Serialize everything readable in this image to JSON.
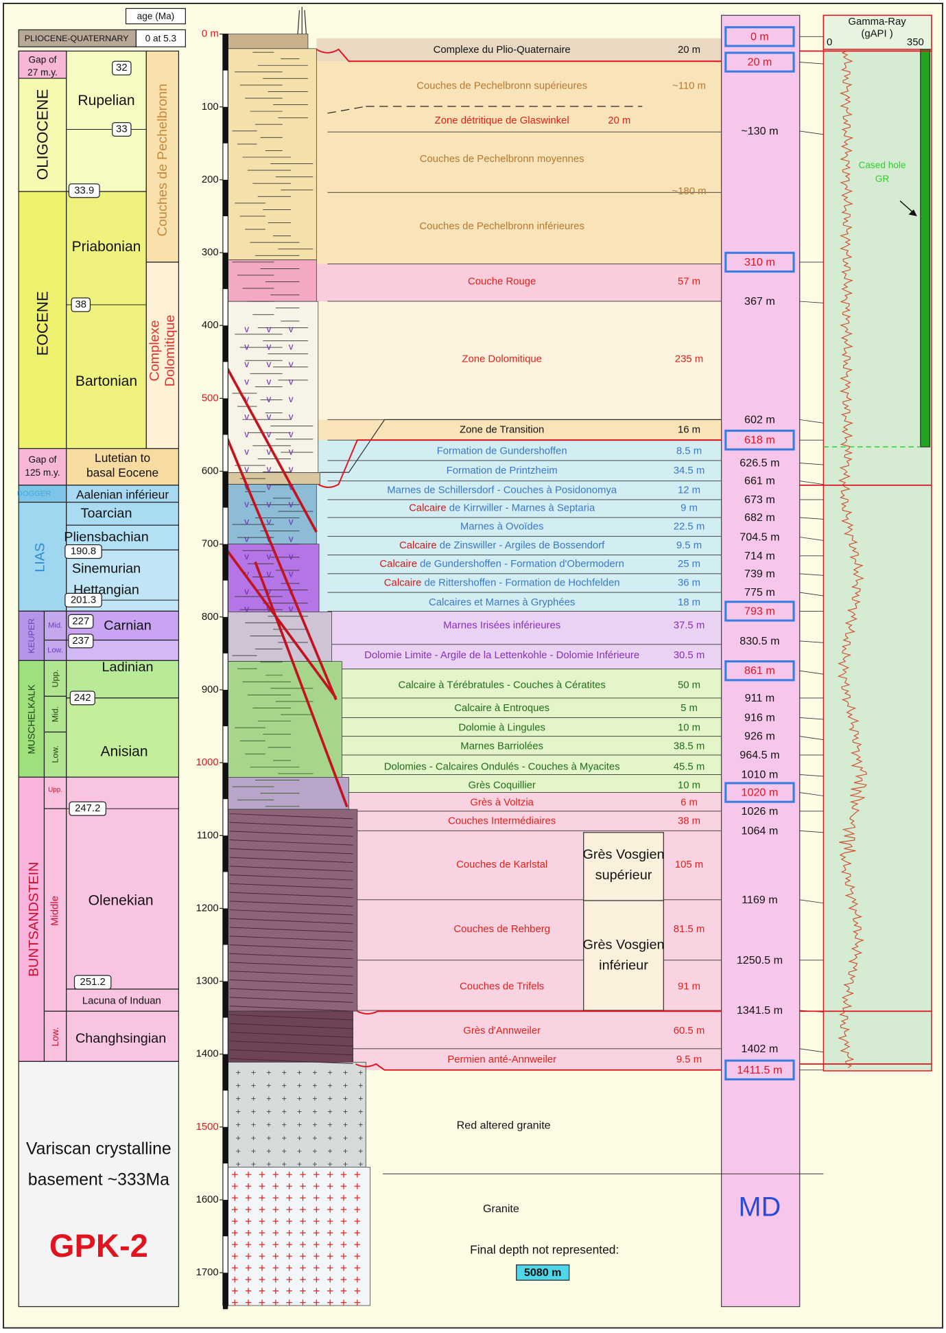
{
  "chronostratigraphy": {
    "age_header": "age (Ma)",
    "top_label": "PLIOCENE-QUATERNARY",
    "top_age": "0 at 5.3",
    "gaps": [
      [
        "Gap of",
        "27 m.y."
      ],
      [
        "Gap of",
        "125 m.y."
      ]
    ],
    "series": [
      "OLIGOCENE",
      "EOCENE",
      "DOGGER",
      "LIAS",
      "KEUPER",
      "MUSCHELKALK",
      "BUNTSANDSTEIN"
    ],
    "subdivisions": [
      "Mid.",
      "Low.",
      "Upp.",
      "Mid.",
      "Low.",
      "Upp.",
      "Middle",
      "Low."
    ],
    "stages": [
      "Rupelian",
      "Priabonian",
      "Bartonian",
      "Lutetian to",
      "basal Eocene",
      "Aalenian inférieur",
      "Toarcian",
      "Pliensbachian",
      "Sinemurian",
      "Hettangian",
      "Carnian",
      "Ladinian",
      "Anisian",
      "Olenekian",
      "Lacuna of Induan",
      "Changhsingian"
    ],
    "ages": [
      32,
      33,
      33.9,
      38,
      190.8,
      201.3,
      227,
      237,
      242,
      247.2,
      251.2
    ],
    "groups": [
      [
        "Couches de Pechelbronn"
      ],
      [
        "Complexe",
        "Dolomitique"
      ]
    ],
    "basement": [
      "Variscan crystalline",
      "basement ~333Ma"
    ],
    "well": "GPK-2"
  },
  "depth_ticks": [
    {
      "value": 0,
      "label": "0 m"
    },
    100,
    200,
    300,
    400,
    500,
    600,
    700,
    800,
    900,
    1000,
    1100,
    1200,
    1300,
    1400,
    1500,
    1600,
    1700
  ],
  "formations": [
    {
      "name": "Complexe du Plio-Quaternaire",
      "thickness": "20 m"
    },
    {
      "name": "Couches de Pechelbronn supérieures",
      "thickness": "~110 m"
    },
    {
      "name": "Zone détritique de Glaswinkel",
      "thickness": "20 m"
    },
    {
      "name": "Couches de Pechelbronn moyennes"
    },
    {
      "name": "Couches de Pechelbronn inférieures",
      "thickness": "~180 m"
    },
    {
      "name": "Couche Rouge",
      "thickness": "57 m"
    },
    {
      "name": "Zone Dolomitique",
      "thickness": "235 m"
    },
    {
      "name": "Zone de Transition",
      "thickness": "16 m"
    },
    {
      "name": "Formation de Gundershoffen",
      "thickness": "8.5 m"
    },
    {
      "name": "Formation de Printzheim",
      "thickness": "34.5 m"
    },
    {
      "name": "Marnes de Schillersdorf - Couches à Posidonomya",
      "thickness": "12 m"
    },
    {
      "highlight": "Calcaire",
      "name": "de Kirrwiller - Marnes à Septaria",
      "thickness": "9 m"
    },
    {
      "name": "Marnes à Ovoïdes",
      "thickness": "22.5 m"
    },
    {
      "highlight": "Calcaire",
      "name": "de Zinswiller - Argiles de Bossendorf",
      "thickness": "9.5 m"
    },
    {
      "highlight": "Calcaire",
      "name": "de Gundershoffen - Formation d'Obermodern",
      "thickness": "25 m"
    },
    {
      "highlight": "Calcaire",
      "name": "de Rittershoffen - Formation de Hochfelden",
      "thickness": "36 m"
    },
    {
      "name": "Calcaires et Marnes à Gryphées",
      "thickness": "18 m"
    },
    {
      "name": "Marnes Irisées inférieures",
      "thickness": "37.5 m"
    },
    {
      "name": "Dolomie Limite - Argile de la Lettenkohle - Dolomie Inférieure",
      "thickness": "30.5 m"
    },
    {
      "name": "Calcaire à Térébratules - Couches à Cératites",
      "thickness": "50 m"
    },
    {
      "name": "Calcaire à Entroques",
      "thickness": "5 m"
    },
    {
      "name": "Dolomie à Lingules",
      "thickness": "10 m"
    },
    {
      "name": "Marnes Barriolées",
      "thickness": "38.5 m"
    },
    {
      "name": "Dolomies - Calcaires Ondulés - Couches à Myacites",
      "thickness": "45.5 m"
    },
    {
      "name": "Grès Coquillier",
      "thickness": "10 m"
    },
    {
      "name": "Grès à Voltzia",
      "thickness": "6 m"
    },
    {
      "name": "Couches Intermédiaires",
      "thickness": "38 m"
    },
    {
      "name": "Couches de Karlstal",
      "thickness": "105 m"
    },
    {
      "name": "Couches de Rehberg",
      "thickness": "81.5 m"
    },
    {
      "name": "Couches de Trifels",
      "thickness": "91 m"
    },
    {
      "name": "Grès d'Annweiler",
      "thickness": "60.5 m"
    },
    {
      "name": "Permien anté-Annweiler",
      "thickness": "9.5 m"
    }
  ],
  "vosgien": [
    [
      "Grès Vosgien",
      "supérieur"
    ],
    [
      "Grès Vosgien",
      "inférieur"
    ]
  ],
  "md": {
    "title": "MD",
    "tops": [
      {
        "label": "0 m",
        "boxed": true
      },
      {
        "label": "20 m",
        "boxed": true
      },
      {
        "label": "~130 m"
      },
      {
        "label": "310 m",
        "boxed": true
      },
      {
        "label": "367 m"
      },
      {
        "label": "602 m"
      },
      {
        "label": "618 m",
        "boxed": true
      },
      {
        "label": "626.5 m"
      },
      {
        "label": "661 m"
      },
      {
        "label": "673 m"
      },
      {
        "label": "682 m"
      },
      {
        "label": "704.5 m"
      },
      {
        "label": "714 m"
      },
      {
        "label": "739 m"
      },
      {
        "label": "775 m"
      },
      {
        "label": "793 m",
        "boxed": true
      },
      {
        "label": "830.5 m"
      },
      {
        "label": "861 m",
        "boxed": true
      },
      {
        "label": "911 m"
      },
      {
        "label": "916 m"
      },
      {
        "label": "926 m"
      },
      {
        "label": "964.5 m"
      },
      {
        "label": "1010 m"
      },
      {
        "label": "1020 m",
        "boxed": true
      },
      {
        "label": "1026 m"
      },
      {
        "label": "1064 m"
      },
      {
        "label": "1169 m"
      },
      {
        "label": "1250.5 m"
      },
      {
        "label": "1341.5 m"
      },
      {
        "label": "1402 m"
      },
      {
        "label": "1411.5 m",
        "boxed": true
      }
    ]
  },
  "gamma_ray": {
    "title": "Gamma-Ray",
    "unit": "(gAPI )",
    "min_label": "0",
    "max_label": "350",
    "note": [
      "Cased hole",
      "GR"
    ]
  },
  "basement_units": [
    "Red altered granite",
    "Granite"
  ],
  "footer": {
    "note": "Final depth not represented:",
    "depth": "5080 m"
  }
}
